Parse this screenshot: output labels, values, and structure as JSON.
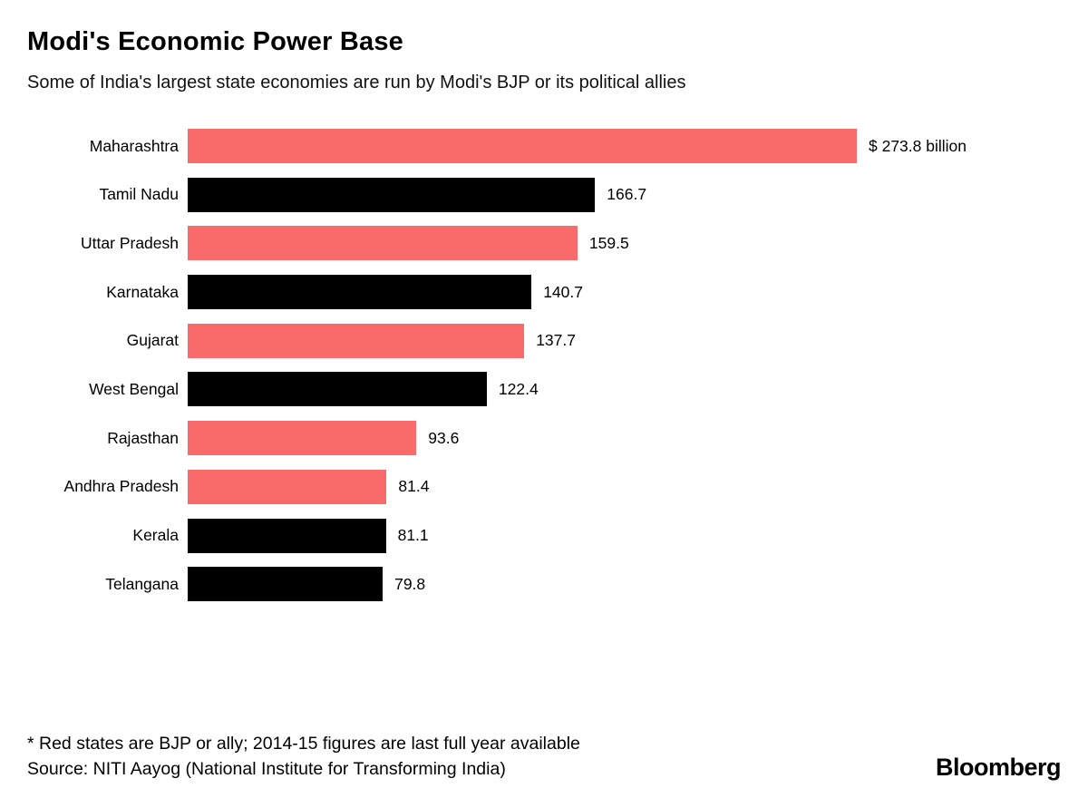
{
  "chart_data": {
    "type": "bar",
    "orientation": "horizontal",
    "title": "Modi's Economic Power Base",
    "subtitle": "Some of India's largest state economies are run by Modi's BJP or its political allies",
    "unit": "$ billion (2014-15 GSDP)",
    "categories": [
      "Maharashtra",
      "Tamil Nadu",
      "Uttar Pradesh",
      "Karnataka",
      "Gujarat",
      "West Bengal",
      "Rajasthan",
      "Andhra Pradesh",
      "Kerala",
      "Telangana"
    ],
    "values": [
      273.8,
      166.7,
      159.5,
      140.7,
      137.7,
      122.4,
      93.6,
      81.4,
      81.1,
      79.8
    ],
    "value_labels": [
      "$ 273.8 billion",
      "166.7",
      "159.5",
      "140.7",
      "137.7",
      "122.4",
      "93.6",
      "81.4",
      "81.1",
      "79.8"
    ],
    "bjp_or_ally": [
      true,
      false,
      true,
      false,
      true,
      false,
      true,
      true,
      false,
      false
    ],
    "colors": {
      "bjp_ally": "#f96b6b",
      "other": "#000000"
    },
    "xlim": [
      0,
      280
    ],
    "grid": false,
    "legend": "none",
    "axis_labels_shown": false
  },
  "footer": {
    "note": "* Red states are BJP or ally; 2014-15 figures are last full year available",
    "source": "Source: NITI Aayog (National Institute for Transforming India)",
    "brand": "Bloomberg"
  }
}
